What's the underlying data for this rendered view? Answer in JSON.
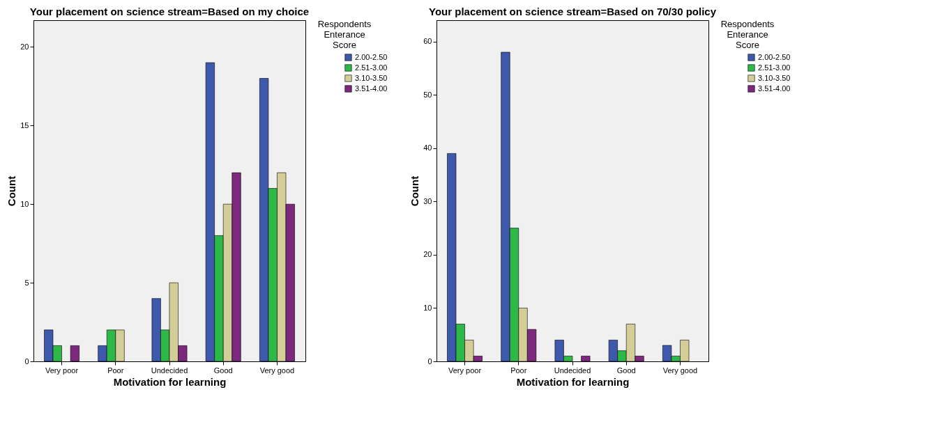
{
  "chart_data": [
    {
      "type": "bar",
      "title": "Your placement on science stream=Based on my choice",
      "xlabel": "Motivation for learning",
      "ylabel": "Count",
      "legend_title": "Respondents Enterance Score",
      "legend": "top right",
      "grid": false,
      "categories": [
        "Very poor",
        "Poor",
        "Undecided",
        "Good",
        "Very good"
      ],
      "ylim": [
        0,
        21.7
      ],
      "yticks": [
        0,
        5,
        10,
        15,
        20
      ],
      "series": [
        {
          "name": "2.00-2.50",
          "color": "#3e58ac",
          "values": [
            2,
            1,
            4,
            19,
            18
          ]
        },
        {
          "name": "2.51-3.00",
          "color": "#2eb848",
          "values": [
            1,
            2,
            2,
            8,
            11
          ]
        },
        {
          "name": "3.10-3.50",
          "color": "#d3ce97",
          "values": [
            null,
            2,
            5,
            10,
            12
          ]
        },
        {
          "name": "3.51-4.00",
          "color": "#7c287d",
          "values": [
            1,
            null,
            1,
            12,
            10
          ]
        }
      ]
    },
    {
      "type": "bar",
      "title": "Your placement on science stream=Based on 70/30 policy",
      "xlabel": "Motivation for learning",
      "ylabel": "Count",
      "legend_title": "Respondents Enterance Score",
      "legend": "top right",
      "grid": false,
      "categories": [
        "Very poor",
        "Poor",
        "Undecided",
        "Good",
        "Very good"
      ],
      "ylim": [
        0,
        64
      ],
      "yticks": [
        0,
        10,
        20,
        30,
        40,
        50,
        60
      ],
      "series": [
        {
          "name": "2.00-2.50",
          "color": "#3e58ac",
          "values": [
            39,
            58,
            4,
            4,
            3
          ]
        },
        {
          "name": "2.51-3.00",
          "color": "#2eb848",
          "values": [
            7,
            25,
            1,
            2,
            1
          ]
        },
        {
          "name": "3.10-3.50",
          "color": "#d3ce97",
          "values": [
            4,
            10,
            null,
            7,
            4
          ]
        },
        {
          "name": "3.51-4.00",
          "color": "#7c287d",
          "values": [
            1,
            6,
            1,
            1,
            null
          ]
        }
      ]
    }
  ]
}
